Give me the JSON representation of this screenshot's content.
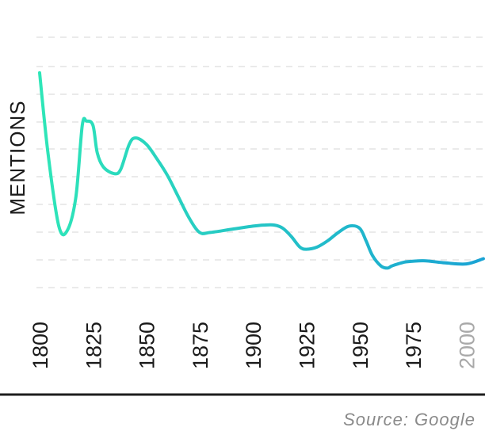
{
  "chart_data": {
    "type": "line",
    "ylabel": "MENTIONS",
    "xlabel": "",
    "source": "Source: Google",
    "x_ticks": [
      "1800",
      "1825",
      "1850",
      "1875",
      "1900",
      "1925",
      "1950",
      "1975",
      "2000"
    ],
    "muted_ticks": [
      "2000"
    ],
    "grid": true,
    "xlim": [
      1800,
      2008
    ],
    "ylim": [
      0,
      100
    ],
    "series": [
      {
        "color_start": "#2ee6b8",
        "color_end": "#1aa3d4",
        "x": [
          1800,
          1804,
          1809,
          1813,
          1817,
          1820,
          1822,
          1825,
          1827,
          1830,
          1835,
          1838,
          1842,
          1845,
          1850,
          1855,
          1860,
          1865,
          1870,
          1875,
          1880,
          1890,
          1900,
          1905,
          1910,
          1914,
          1918,
          1922,
          1925,
          1930,
          1935,
          1940,
          1945,
          1950,
          1953,
          1956,
          1960,
          1963,
          1965,
          1968,
          1972,
          1980,
          1990,
          2000,
          2008
        ],
        "values": [
          97,
          58,
          24,
          22,
          38,
          72,
          74,
          72,
          59,
          52,
          49,
          51,
          63,
          66,
          63,
          56,
          48,
          38,
          28,
          21,
          21,
          22.5,
          24,
          24.5,
          24.5,
          23,
          19,
          14,
          13,
          14,
          17,
          21,
          24,
          23,
          17,
          10,
          5,
          4,
          5,
          6,
          7,
          7.5,
          6.5,
          6,
          8.5
        ]
      }
    ]
  }
}
